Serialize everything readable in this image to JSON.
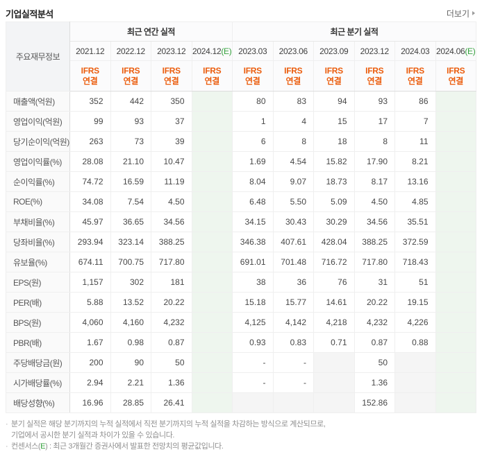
{
  "header": {
    "title": "기업실적분석",
    "more_label": "더보기"
  },
  "colors": {
    "ifrs_orange": "#eb5c0c",
    "estimate_green": "#33a03c",
    "estimate_column_bg": "#eef6ee",
    "empty_cell_bg": "#f5f5f5",
    "corner_header_bg": "#f3f4f6"
  },
  "table": {
    "corner_label": "주요재무정보",
    "estimate_suffix": "(E)",
    "ifrs_lines": [
      "IFRS",
      "연결"
    ],
    "groups": [
      {
        "label": "최근 연간 실적",
        "span": 4
      },
      {
        "label": "최근 분기 실적",
        "span": 6
      }
    ],
    "columns": [
      {
        "period": "2021.12",
        "estimate": false
      },
      {
        "period": "2022.12",
        "estimate": false
      },
      {
        "period": "2023.12",
        "estimate": false
      },
      {
        "period": "2024.12",
        "estimate": true
      },
      {
        "period": "2023.03",
        "estimate": false
      },
      {
        "period": "2023.06",
        "estimate": false
      },
      {
        "period": "2023.09",
        "estimate": false
      },
      {
        "period": "2023.12",
        "estimate": false
      },
      {
        "period": "2024.03",
        "estimate": false
      },
      {
        "period": "2024.06",
        "estimate": true
      }
    ],
    "group_start_rows": [
      3,
      6,
      9,
      13
    ],
    "rows": [
      {
        "label": "매출액(억원)",
        "values": [
          "352",
          "442",
          "350",
          "",
          "80",
          "83",
          "94",
          "93",
          "86",
          ""
        ]
      },
      {
        "label": "영업이익(억원)",
        "values": [
          "99",
          "93",
          "37",
          "",
          "1",
          "4",
          "15",
          "17",
          "7",
          ""
        ]
      },
      {
        "label": "당기순이익(억원)",
        "values": [
          "263",
          "73",
          "39",
          "",
          "6",
          "8",
          "18",
          "8",
          "11",
          ""
        ]
      },
      {
        "label": "영업이익률(%)",
        "values": [
          "28.08",
          "21.10",
          "10.47",
          "",
          "1.69",
          "4.54",
          "15.82",
          "17.90",
          "8.21",
          ""
        ]
      },
      {
        "label": "순이익률(%)",
        "values": [
          "74.72",
          "16.59",
          "11.19",
          "",
          "8.04",
          "9.07",
          "18.73",
          "8.17",
          "13.16",
          ""
        ]
      },
      {
        "label": "ROE(%)",
        "values": [
          "34.08",
          "7.54",
          "4.50",
          "",
          "6.48",
          "5.50",
          "5.09",
          "4.50",
          "4.85",
          ""
        ]
      },
      {
        "label": "부채비율(%)",
        "values": [
          "45.97",
          "36.65",
          "34.56",
          "",
          "34.15",
          "30.43",
          "30.29",
          "34.56",
          "35.51",
          ""
        ]
      },
      {
        "label": "당좌비율(%)",
        "values": [
          "293.94",
          "323.14",
          "388.25",
          "",
          "346.38",
          "407.61",
          "428.04",
          "388.25",
          "372.59",
          ""
        ]
      },
      {
        "label": "유보율(%)",
        "values": [
          "674.11",
          "700.75",
          "717.80",
          "",
          "691.01",
          "701.48",
          "716.72",
          "717.80",
          "718.43",
          ""
        ]
      },
      {
        "label": "EPS(원)",
        "values": [
          "1,157",
          "302",
          "181",
          "",
          "38",
          "36",
          "76",
          "31",
          "51",
          ""
        ]
      },
      {
        "label": "PER(배)",
        "values": [
          "5.88",
          "13.52",
          "20.22",
          "",
          "15.18",
          "15.77",
          "14.61",
          "20.22",
          "19.15",
          ""
        ]
      },
      {
        "label": "BPS(원)",
        "values": [
          "4,060",
          "4,160",
          "4,232",
          "",
          "4,125",
          "4,142",
          "4,218",
          "4,232",
          "4,226",
          ""
        ]
      },
      {
        "label": "PBR(배)",
        "values": [
          "1.67",
          "0.98",
          "0.87",
          "",
          "0.93",
          "0.83",
          "0.71",
          "0.87",
          "0.88",
          ""
        ]
      },
      {
        "label": "주당배당금(원)",
        "values": [
          "200",
          "90",
          "50",
          "",
          "-",
          "-",
          null,
          "50",
          null,
          ""
        ]
      },
      {
        "label": "시가배당률(%)",
        "values": [
          "2.94",
          "2.21",
          "1.36",
          "",
          "-",
          "-",
          null,
          "1.36",
          null,
          ""
        ]
      },
      {
        "label": "배당성향(%)",
        "values": [
          "16.96",
          "28.85",
          "26.41",
          "",
          null,
          null,
          null,
          "152.86",
          null,
          ""
        ]
      }
    ]
  },
  "footnotes": {
    "note1_line1": "분기 실적은 해당 분기까지의 누적 실적에서 직전 분기까지의 누적 실적을 차감하는 방식으로 계산되므로,",
    "note1_line2": "기업에서 공시한 분기 실적과 차이가 있을 수 있습니다.",
    "note2_prefix": "컨센서스(",
    "note2_e": "E",
    "note2_suffix": ") : 최근 3개월간 증권사에서 발표한 전망치의 평균값입니다."
  }
}
